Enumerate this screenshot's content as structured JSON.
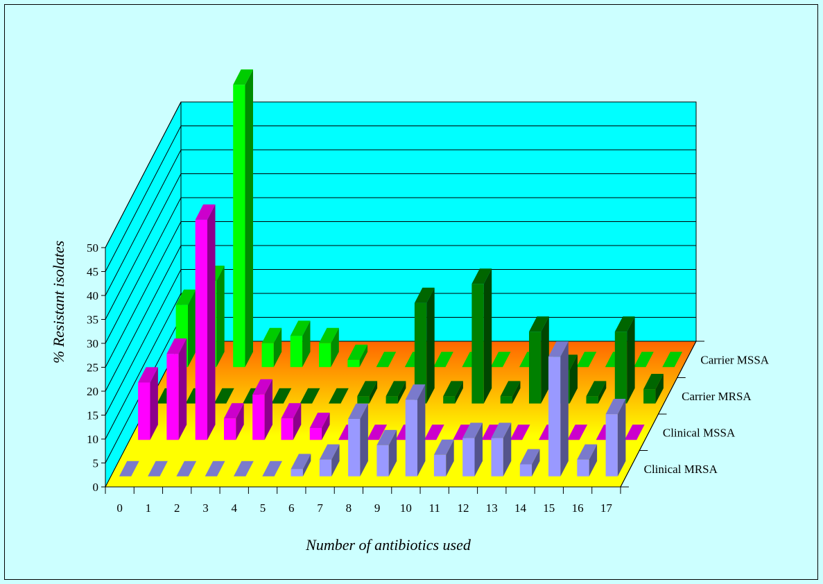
{
  "chart_data": {
    "type": "bar3d",
    "xlabel": "Number of antibiotics used",
    "ylabel": "% Resistant isolates",
    "ylim": [
      0,
      50
    ],
    "y_ticks": [
      "0",
      "5",
      "10",
      "15",
      "20",
      "25",
      "30",
      "35",
      "40",
      "45",
      "50"
    ],
    "categories": [
      "0",
      "1",
      "2",
      "3",
      "4",
      "5",
      "6",
      "7",
      "8",
      "9",
      "10",
      "11",
      "12",
      "13",
      "14",
      "15",
      "16",
      "17"
    ],
    "grid": true,
    "colors": {
      "wall": "#00ffff",
      "floor_front": "#ffff00",
      "floor_back": "#ff6600",
      "clinical_mrsa": "#9999ff",
      "clinical_mssa": "#ff00ff",
      "carrier_mrsa": "#008000",
      "carrier_mssa": "#00ff00"
    },
    "series": [
      {
        "name": "Clinical MRSA",
        "color": "#9999ff",
        "values": [
          0,
          0,
          0,
          0,
          0,
          0,
          1.5,
          3.5,
          12,
          6.5,
          16,
          4.5,
          8,
          8,
          2.5,
          25,
          3.5,
          13
        ]
      },
      {
        "name": "Clinical MSSA",
        "color": "#ff00ff",
        "values": [
          12,
          18,
          46,
          4.5,
          9.5,
          4.5,
          2.5,
          0,
          0,
          0,
          0,
          0,
          0,
          0,
          0,
          0,
          0,
          0
        ]
      },
      {
        "name": "Carrier MRSA",
        "color": "#008000",
        "values": [
          0,
          0,
          0,
          0,
          0,
          0,
          0,
          1.5,
          1.5,
          21,
          1.5,
          25,
          1.5,
          15,
          7,
          1.5,
          15,
          3
        ]
      },
      {
        "name": "Carrier MSSA",
        "color": "#00ff00",
        "values": [
          13,
          18,
          59,
          5,
          6.5,
          5,
          1.5,
          0,
          0,
          0,
          0,
          0,
          0,
          0,
          0,
          0,
          0,
          0
        ]
      }
    ]
  }
}
